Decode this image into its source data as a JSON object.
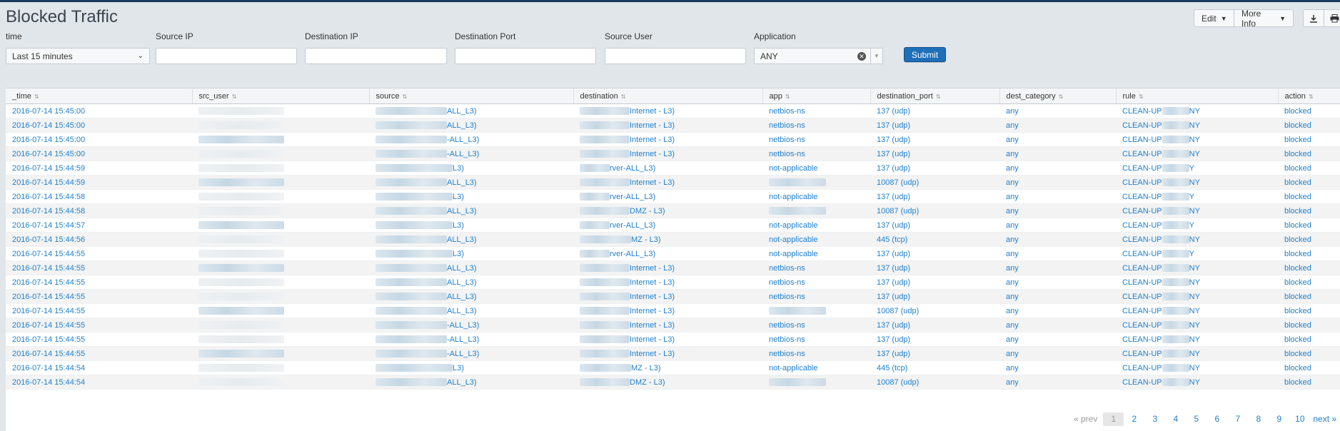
{
  "dashboard": {
    "title": "Blocked Traffic"
  },
  "actions": {
    "edit": "Edit",
    "more_info": "More Info"
  },
  "icons": {
    "download": "download-icon",
    "print": "print-icon"
  },
  "filters": {
    "time": {
      "label": "time",
      "value": "Last 15 minutes"
    },
    "source_ip": {
      "label": "Source IP",
      "value": "",
      "placeholder": ""
    },
    "destination_ip": {
      "label": "Destination IP",
      "value": "",
      "placeholder": ""
    },
    "destination_port": {
      "label": "Destination Port",
      "value": "",
      "placeholder": ""
    },
    "source_user": {
      "label": "Source User",
      "value": "",
      "placeholder": ""
    },
    "application": {
      "label": "Application",
      "value": "ANY"
    },
    "submit_label": "Submit"
  },
  "table": {
    "columns": [
      "_time",
      "src_user",
      "source",
      "destination",
      "app",
      "destination_port",
      "dest_category",
      "rule",
      "action"
    ],
    "rows": [
      {
        "time": "2016-07-14 15:45:00",
        "source": "ALL_L3)",
        "destination": "Internet - L3)",
        "app": "netbios-ns",
        "port": "137 (udp)",
        "category": "any",
        "rule": "CLEAN-UP",
        "rule_tail": "NY",
        "action": "blocked"
      },
      {
        "time": "2016-07-14 15:45:00",
        "source": "ALL_L3)",
        "destination": "Internet - L3)",
        "app": "netbios-ns",
        "port": "137 (udp)",
        "category": "any",
        "rule": "CLEAN-UP",
        "rule_tail": "NY",
        "action": "blocked"
      },
      {
        "time": "2016-07-14 15:45:00",
        "source": "-ALL_L3)",
        "destination": "Internet - L3)",
        "app": "netbios-ns",
        "port": "137 (udp)",
        "category": "any",
        "rule": "CLEAN-UP",
        "rule_tail": "NY",
        "action": "blocked"
      },
      {
        "time": "2016-07-14 15:45:00",
        "source": "-ALL_L3)",
        "destination": "Internet - L3)",
        "app": "netbios-ns",
        "port": "137 (udp)",
        "category": "any",
        "rule": "CLEAN-UP",
        "rule_tail": "NY",
        "action": "blocked"
      },
      {
        "time": "2016-07-14 15:44:59",
        "source": "L3)",
        "destination": "rver-ALL_L3)",
        "app": "not-applicable",
        "port": "137 (udp)",
        "category": "any",
        "rule": "CLEAN-UP",
        "rule_tail": "Y",
        "action": "blocked"
      },
      {
        "time": "2016-07-14 15:44:59",
        "source": "ALL_L3)",
        "destination": "Internet - L3)",
        "app": "",
        "port": "10087 (udp)",
        "category": "any",
        "rule": "CLEAN-UP",
        "rule_tail": "NY",
        "action": "blocked"
      },
      {
        "time": "2016-07-14 15:44:58",
        "source": "L3)",
        "destination": "rver-ALL_L3)",
        "app": "not-applicable",
        "port": "137 (udp)",
        "category": "any",
        "rule": "CLEAN-UP",
        "rule_tail": "Y",
        "action": "blocked"
      },
      {
        "time": "2016-07-14 15:44:58",
        "source": "ALL_L3)",
        "destination": "DMZ - L3)",
        "app": "",
        "port": "10087 (udp)",
        "category": "any",
        "rule": "CLEAN-UP",
        "rule_tail": "NY",
        "action": "blocked"
      },
      {
        "time": "2016-07-14 15:44:57",
        "source": "L3)",
        "destination": "rver-ALL_L3)",
        "app": "not-applicable",
        "port": "137 (udp)",
        "category": "any",
        "rule": "CLEAN-UP",
        "rule_tail": "Y",
        "action": "blocked"
      },
      {
        "time": "2016-07-14 15:44:56",
        "source": "ALL_L3)",
        "destination": "MZ - L3)",
        "app": "not-applicable",
        "port": "445 (tcp)",
        "category": "any",
        "rule": "CLEAN-UP",
        "rule_tail": "NY",
        "action": "blocked"
      },
      {
        "time": "2016-07-14 15:44:55",
        "source": "L3)",
        "destination": "rver-ALL_L3)",
        "app": "not-applicable",
        "port": "137 (udp)",
        "category": "any",
        "rule": "CLEAN-UP",
        "rule_tail": "Y",
        "action": "blocked"
      },
      {
        "time": "2016-07-14 15:44:55",
        "source": "ALL_L3)",
        "destination": "Internet - L3)",
        "app": "netbios-ns",
        "port": "137 (udp)",
        "category": "any",
        "rule": "CLEAN-UP",
        "rule_tail": "NY",
        "action": "blocked"
      },
      {
        "time": "2016-07-14 15:44:55",
        "source": "ALL_L3)",
        "destination": "Internet - L3)",
        "app": "netbios-ns",
        "port": "137 (udp)",
        "category": "any",
        "rule": "CLEAN-UP",
        "rule_tail": "NY",
        "action": "blocked"
      },
      {
        "time": "2016-07-14 15:44:55",
        "source": "ALL_L3)",
        "destination": "Internet - L3)",
        "app": "netbios-ns",
        "port": "137 (udp)",
        "category": "any",
        "rule": "CLEAN-UP",
        "rule_tail": "NY",
        "action": "blocked"
      },
      {
        "time": "2016-07-14 15:44:55",
        "source": "ALL_L3)",
        "destination": "Internet - L3)",
        "app": "",
        "port": "10087 (udp)",
        "category": "any",
        "rule": "CLEAN-UP",
        "rule_tail": "NY",
        "action": "blocked"
      },
      {
        "time": "2016-07-14 15:44:55",
        "source": "-ALL_L3)",
        "destination": "Internet - L3)",
        "app": "netbios-ns",
        "port": "137 (udp)",
        "category": "any",
        "rule": "CLEAN-UP",
        "rule_tail": "NY",
        "action": "blocked"
      },
      {
        "time": "2016-07-14 15:44:55",
        "source": "-ALL_L3)",
        "destination": "Internet - L3)",
        "app": "netbios-ns",
        "port": "137 (udp)",
        "category": "any",
        "rule": "CLEAN-UP",
        "rule_tail": "NY",
        "action": "blocked"
      },
      {
        "time": "2016-07-14 15:44:55",
        "source": "-ALL_L3)",
        "destination": "Internet - L3)",
        "app": "netbios-ns",
        "port": "137 (udp)",
        "category": "any",
        "rule": "CLEAN-UP",
        "rule_tail": "NY",
        "action": "blocked"
      },
      {
        "time": "2016-07-14 15:44:54",
        "source": "L3)",
        "destination": "MZ - L3)",
        "app": "not-applicable",
        "port": "445 (tcp)",
        "category": "any",
        "rule": "CLEAN-UP",
        "rule_tail": "NY",
        "action": "blocked"
      },
      {
        "time": "2016-07-14 15:44:54",
        "source": "ALL_L3)",
        "destination": "DMZ - L3)",
        "app": "",
        "port": "10087 (udp)",
        "category": "any",
        "rule": "CLEAN-UP",
        "rule_tail": "NY",
        "action": "blocked"
      }
    ]
  },
  "pagination": {
    "prev": "« prev",
    "pages": [
      "1",
      "2",
      "3",
      "4",
      "5",
      "6",
      "7",
      "8",
      "9",
      "10"
    ],
    "current": "1",
    "next": "next »"
  }
}
